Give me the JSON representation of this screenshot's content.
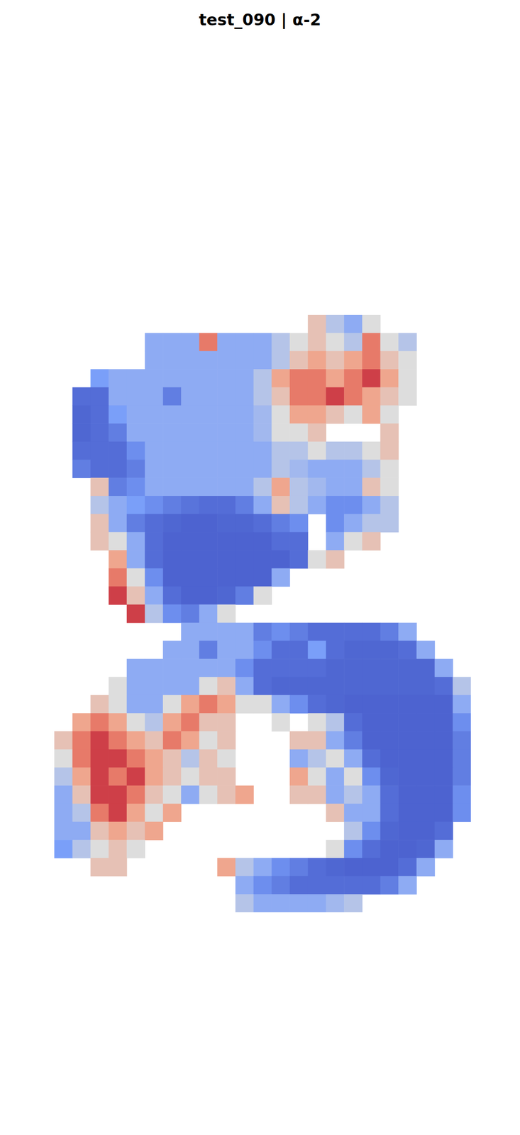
{
  "chart_data": {
    "type": "heatmap",
    "title": "test_090 | α-2",
    "tick_labels": false,
    "color_range": [
      0,
      1
    ],
    "cells": [
      [
        null,
        null,
        null,
        null,
        null,
        null,
        null,
        null,
        null,
        null,
        null,
        null,
        null,
        null,
        0.6,
        0.4,
        0.3,
        0.5,
        null,
        null,
        null,
        null,
        null
      ],
      [
        null,
        null,
        null,
        null,
        null,
        0.3,
        0.3,
        0.3,
        0.8,
        0.3,
        0.3,
        0.3,
        0.4,
        0.5,
        0.6,
        0.5,
        0.4,
        0.8,
        0.5,
        0.4,
        null,
        null,
        null
      ],
      [
        null,
        null,
        null,
        null,
        null,
        0.3,
        0.3,
        0.3,
        0.3,
        0.3,
        0.3,
        0.3,
        0.4,
        0.6,
        0.7,
        0.6,
        0.7,
        0.8,
        0.6,
        0.5,
        null,
        null,
        null
      ],
      [
        null,
        null,
        0.25,
        0.3,
        0.3,
        0.3,
        0.3,
        0.3,
        0.3,
        0.3,
        0.3,
        0.4,
        0.7,
        0.8,
        0.8,
        0.7,
        0.8,
        0.9,
        0.7,
        0.5,
        null,
        null,
        null
      ],
      [
        null,
        0.1,
        0.1,
        0.3,
        0.3,
        0.3,
        0.15,
        0.3,
        0.3,
        0.3,
        0.3,
        0.4,
        0.6,
        0.8,
        0.8,
        0.9,
        0.8,
        0.7,
        0.6,
        0.5,
        null,
        null,
        null
      ],
      [
        null,
        0.08,
        0.1,
        0.25,
        0.3,
        0.3,
        0.3,
        0.3,
        0.3,
        0.3,
        0.3,
        0.35,
        0.5,
        0.7,
        0.7,
        0.6,
        0.5,
        0.7,
        0.5,
        null,
        null,
        null,
        null
      ],
      [
        null,
        0.08,
        0.1,
        0.15,
        0.3,
        0.3,
        0.3,
        0.3,
        0.3,
        0.3,
        0.3,
        0.35,
        0.5,
        0.5,
        0.6,
        null,
        null,
        null,
        0.6,
        null,
        null,
        null,
        null
      ],
      [
        null,
        0.1,
        0.1,
        0.1,
        0.2,
        0.3,
        0.3,
        0.3,
        0.3,
        0.3,
        0.3,
        0.3,
        0.4,
        0.4,
        0.5,
        0.4,
        0.4,
        0.5,
        0.6,
        null,
        null,
        null,
        null
      ],
      [
        null,
        0.15,
        0.1,
        0.1,
        0.15,
        0.3,
        0.3,
        0.3,
        0.3,
        0.3,
        0.3,
        0.3,
        0.4,
        0.35,
        0.3,
        0.3,
        0.3,
        0.4,
        0.5,
        null,
        null,
        null,
        null
      ],
      [
        null,
        null,
        0.6,
        0.15,
        0.2,
        0.3,
        0.3,
        0.3,
        0.3,
        0.3,
        0.3,
        0.4,
        0.7,
        0.4,
        0.35,
        0.3,
        0.3,
        0.6,
        0.5,
        null,
        null,
        null,
        null
      ],
      [
        null,
        null,
        0.4,
        0.3,
        0.25,
        0.2,
        0.15,
        0.12,
        0.1,
        0.1,
        0.15,
        0.3,
        0.6,
        0.4,
        0.3,
        0.2,
        0.2,
        0.3,
        0.4,
        null,
        null,
        null,
        null
      ],
      [
        null,
        null,
        0.6,
        0.3,
        0.15,
        0.1,
        0.08,
        0.07,
        0.07,
        0.08,
        0.08,
        0.1,
        0.15,
        0.2,
        null,
        0.2,
        0.3,
        0.4,
        0.4,
        null,
        null,
        null,
        null
      ],
      [
        null,
        null,
        0.6,
        0.5,
        0.3,
        0.1,
        0.07,
        0.07,
        0.07,
        0.07,
        0.07,
        0.07,
        0.1,
        0.1,
        null,
        0.3,
        0.5,
        0.6,
        null,
        null,
        null,
        null,
        null
      ],
      [
        null,
        null,
        null,
        0.7,
        0.3,
        0.1,
        0.07,
        0.07,
        0.07,
        0.07,
        0.07,
        0.07,
        0.07,
        0.1,
        0.5,
        0.6,
        null,
        null,
        null,
        null,
        null,
        null,
        null
      ],
      [
        null,
        null,
        null,
        0.8,
        0.5,
        0.2,
        0.07,
        0.07,
        0.07,
        0.07,
        0.07,
        0.07,
        0.3,
        null,
        null,
        null,
        null,
        null,
        null,
        null,
        null,
        null,
        null
      ],
      [
        null,
        null,
        null,
        0.9,
        0.6,
        0.3,
        0.1,
        0.07,
        0.07,
        0.08,
        0.15,
        0.5,
        null,
        null,
        null,
        null,
        null,
        null,
        null,
        null,
        null,
        null,
        null
      ],
      [
        null,
        null,
        null,
        null,
        0.9,
        0.4,
        0.2,
        0.15,
        0.3,
        0.5,
        null,
        null,
        null,
        null,
        null,
        null,
        null,
        null,
        null,
        null,
        null,
        null,
        null
      ],
      [
        null,
        null,
        null,
        null,
        null,
        null,
        null,
        0.3,
        0.3,
        0.3,
        0.3,
        0.15,
        0.2,
        0.15,
        0.1,
        0.1,
        0.1,
        0.1,
        0.15,
        0.3,
        null,
        null,
        null
      ],
      [
        null,
        null,
        null,
        null,
        null,
        null,
        0.3,
        0.3,
        0.15,
        0.3,
        0.3,
        0.2,
        0.1,
        0.1,
        0.25,
        0.1,
        0.08,
        0.08,
        0.08,
        0.1,
        0.3,
        null,
        null
      ],
      [
        null,
        null,
        null,
        null,
        0.3,
        0.3,
        0.3,
        0.3,
        0.3,
        0.3,
        0.2,
        0.1,
        0.1,
        0.1,
        0.1,
        0.08,
        0.08,
        0.08,
        0.08,
        0.08,
        0.08,
        0.3,
        null
      ],
      [
        null,
        null,
        null,
        0.5,
        0.3,
        0.3,
        0.3,
        0.3,
        0.5,
        0.6,
        0.3,
        0.1,
        0.08,
        0.08,
        0.08,
        0.08,
        0.08,
        0.08,
        0.08,
        0.08,
        0.08,
        0.1,
        0.4
      ],
      [
        null,
        null,
        0.6,
        0.5,
        0.3,
        0.3,
        0.5,
        0.7,
        0.8,
        0.7,
        0.5,
        0.5,
        0.3,
        0.2,
        0.1,
        0.08,
        0.07,
        0.07,
        0.07,
        0.07,
        0.07,
        0.07,
        0.3
      ],
      [
        null,
        0.7,
        0.8,
        0.7,
        0.5,
        0.4,
        0.7,
        0.8,
        0.6,
        0.6,
        null,
        null,
        0.5,
        null,
        0.5,
        0.4,
        0.1,
        0.07,
        0.07,
        0.07,
        0.07,
        0.07,
        0.2
      ],
      [
        0.6,
        0.8,
        0.9,
        0.8,
        0.7,
        0.6,
        0.8,
        0.7,
        0.5,
        0.6,
        null,
        null,
        null,
        0.6,
        0.6,
        0.3,
        0.15,
        0.07,
        0.07,
        0.07,
        0.07,
        0.07,
        0.15
      ],
      [
        0.5,
        0.8,
        0.9,
        0.9,
        0.8,
        0.7,
        0.6,
        0.4,
        0.6,
        0.5,
        null,
        null,
        null,
        0.3,
        0.4,
        0.5,
        0.3,
        0.1,
        0.07,
        0.07,
        0.07,
        0.07,
        0.15
      ],
      [
        0.4,
        0.7,
        0.9,
        0.8,
        0.9,
        0.7,
        0.6,
        0.5,
        0.6,
        0.6,
        null,
        null,
        null,
        0.7,
        0.5,
        0.3,
        0.5,
        0.2,
        0.08,
        0.07,
        0.07,
        0.07,
        0.15
      ],
      [
        0.3,
        0.6,
        0.9,
        0.9,
        0.8,
        0.6,
        0.5,
        0.3,
        0.5,
        0.6,
        0.7,
        null,
        null,
        0.6,
        0.6,
        0.3,
        0.4,
        0.3,
        0.1,
        0.07,
        0.07,
        0.07,
        0.2
      ],
      [
        0.3,
        0.4,
        0.8,
        0.9,
        0.7,
        0.5,
        0.7,
        null,
        null,
        null,
        null,
        null,
        null,
        null,
        null,
        0.6,
        0.3,
        0.3,
        0.1,
        0.07,
        0.07,
        0.07,
        0.2
      ],
      [
        0.3,
        0.3,
        0.6,
        0.7,
        0.6,
        0.7,
        null,
        null,
        null,
        null,
        null,
        null,
        null,
        null,
        null,
        null,
        0.4,
        0.2,
        0.08,
        0.07,
        0.07,
        0.1,
        null
      ],
      [
        0.25,
        0.4,
        0.5,
        0.6,
        0.5,
        null,
        null,
        null,
        null,
        null,
        null,
        null,
        null,
        null,
        null,
        0.5,
        0.2,
        0.1,
        0.07,
        0.07,
        0.08,
        0.3,
        null
      ],
      [
        null,
        null,
        0.6,
        0.6,
        null,
        null,
        null,
        null,
        null,
        0.7,
        0.4,
        0.3,
        0.2,
        0.15,
        0.1,
        0.08,
        0.07,
        0.07,
        0.07,
        0.1,
        0.3,
        null,
        null
      ],
      [
        null,
        null,
        null,
        null,
        null,
        null,
        null,
        null,
        null,
        null,
        0.3,
        0.2,
        0.15,
        0.1,
        0.1,
        0.1,
        0.1,
        0.1,
        0.15,
        0.3,
        null,
        null,
        null
      ],
      [
        null,
        null,
        null,
        null,
        null,
        null,
        null,
        null,
        null,
        null,
        0.4,
        0.3,
        0.3,
        0.3,
        0.3,
        0.35,
        0.4,
        null,
        null,
        null,
        null,
        null,
        null
      ]
    ]
  }
}
